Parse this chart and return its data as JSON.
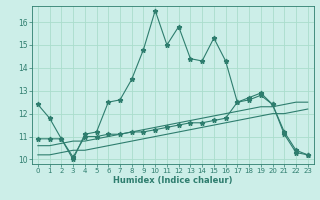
{
  "title": "",
  "xlabel": "Humidex (Indice chaleur)",
  "bg_color": "#cceee8",
  "grid_color": "#aaddcc",
  "line_color": "#2e7d6e",
  "xlim": [
    -0.5,
    23.5
  ],
  "ylim": [
    9.8,
    16.7
  ],
  "yticks": [
    10,
    11,
    12,
    13,
    14,
    15,
    16
  ],
  "xticks": [
    0,
    1,
    2,
    3,
    4,
    5,
    6,
    7,
    8,
    9,
    10,
    11,
    12,
    13,
    14,
    15,
    16,
    17,
    18,
    19,
    20,
    21,
    22,
    23
  ],
  "series1_x": [
    0,
    1,
    2,
    3,
    4,
    5,
    6,
    7,
    8,
    9,
    10,
    11,
    12,
    13,
    14,
    15,
    16,
    17,
    18,
    19,
    20,
    21,
    22,
    23
  ],
  "series1_y": [
    12.4,
    11.8,
    10.9,
    10.0,
    11.1,
    11.2,
    12.5,
    12.6,
    13.5,
    14.8,
    16.5,
    15.0,
    15.8,
    14.4,
    14.3,
    15.3,
    14.3,
    12.5,
    12.7,
    12.9,
    12.4,
    11.1,
    10.3,
    10.2
  ],
  "series2_x": [
    0,
    1,
    2,
    3,
    4,
    5,
    6,
    7,
    8,
    9,
    10,
    11,
    12,
    13,
    14,
    15,
    16,
    17,
    18,
    19,
    20,
    21,
    22,
    23
  ],
  "series2_y": [
    10.9,
    10.9,
    10.9,
    10.1,
    11.0,
    11.0,
    11.1,
    11.1,
    11.2,
    11.2,
    11.3,
    11.4,
    11.5,
    11.6,
    11.6,
    11.7,
    11.8,
    12.5,
    12.6,
    12.8,
    12.4,
    11.2,
    10.4,
    10.2
  ],
  "series3_x": [
    0,
    1,
    2,
    3,
    4,
    5,
    6,
    7,
    8,
    9,
    10,
    11,
    12,
    13,
    14,
    15,
    16,
    17,
    18,
    19,
    20,
    21,
    22,
    23
  ],
  "series3_y": [
    10.6,
    10.6,
    10.7,
    10.8,
    10.8,
    10.9,
    11.0,
    11.1,
    11.2,
    11.3,
    11.4,
    11.5,
    11.6,
    11.7,
    11.8,
    11.9,
    12.0,
    12.1,
    12.2,
    12.3,
    12.3,
    12.4,
    12.5,
    12.5
  ],
  "series4_x": [
    0,
    1,
    2,
    3,
    4,
    5,
    6,
    7,
    8,
    9,
    10,
    11,
    12,
    13,
    14,
    15,
    16,
    17,
    18,
    19,
    20,
    21,
    22,
    23
  ],
  "series4_y": [
    10.2,
    10.2,
    10.3,
    10.4,
    10.4,
    10.5,
    10.6,
    10.7,
    10.8,
    10.9,
    11.0,
    11.1,
    11.2,
    11.3,
    11.4,
    11.5,
    11.6,
    11.7,
    11.8,
    11.9,
    12.0,
    12.0,
    12.1,
    12.2
  ]
}
